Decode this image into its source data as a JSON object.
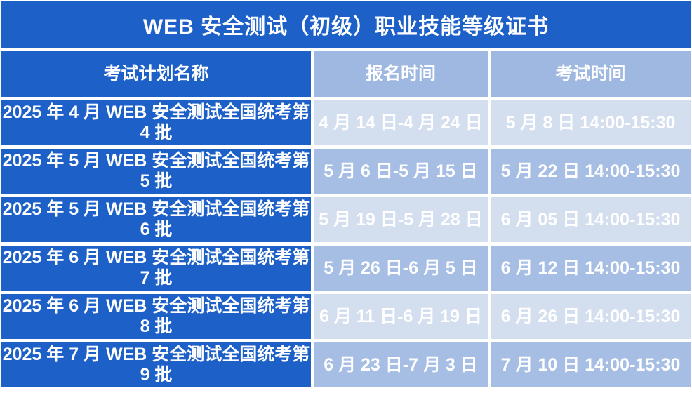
{
  "title": "WEB 安全测试（初级）职业技能等级证书",
  "colors": {
    "primary_blue": "#1d61c8",
    "header_periwinkle": "#9fb8e2",
    "row_light_blue": "#d3deee",
    "row_medium_blue": "#a6bde4",
    "text_white": "#ffffff",
    "background": "#ffffff"
  },
  "table": {
    "headers": {
      "plan": "考试计划名称",
      "registration": "报名时间",
      "exam": "考试时间"
    },
    "rows": [
      {
        "plan": "2025 年 4 月 WEB 安全测试全国统考第 4 批",
        "registration": "4 月 14 日-4 月 24 日",
        "exam": "5 月 8 日  14:00-15:30"
      },
      {
        "plan": "2025 年 5 月 WEB 安全测试全国统考第 5 批",
        "registration": "5 月 6 日-5 月 15 日",
        "exam": "5 月 22 日  14:00-15:30"
      },
      {
        "plan": "2025 年 5 月 WEB 安全测试全国统考第 6 批",
        "registration": "5 月 19 日-5 月 28 日",
        "exam": "6 月 05 日  14:00-15:30"
      },
      {
        "plan": "2025 年 6 月 WEB 安全测试全国统考第 7 批",
        "registration": "5 月 26 日-6 月 5 日",
        "exam": "6 月 12 日  14:00-15:30"
      },
      {
        "plan": "2025 年 6 月 WEB 安全测试全国统考第 8 批",
        "registration": "6 月 11 日-6 月 19 日",
        "exam": "6 月 26 日  14:00-15:30"
      },
      {
        "plan": "2025 年 7 月 WEB 安全测试全国统考第 9 批",
        "registration": "6 月 23 日-7 月 3 日",
        "exam": "7 月 10 日  14:00-15:30"
      }
    ]
  }
}
